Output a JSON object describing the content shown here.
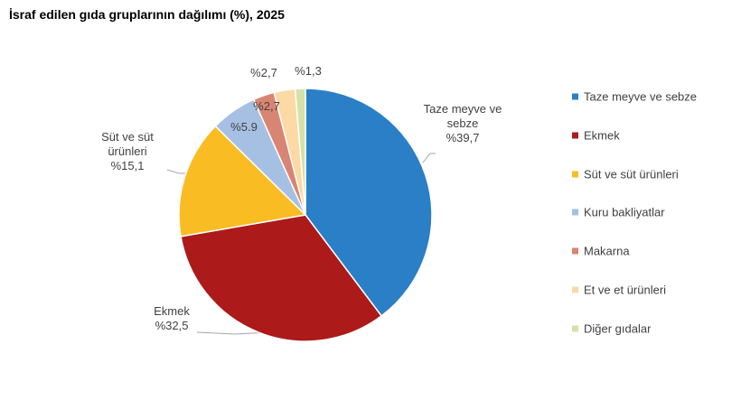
{
  "chart_data": {
    "type": "pie",
    "title": "İsraf edilen gıda gruplarının dağılımı (%), 2025",
    "categories": [
      "Taze meyve ve sebze",
      "Ekmek",
      "Süt ve süt ürünleri",
      "Kuru bakliyatlar",
      "Makarna",
      "Et ve et ürünleri",
      "Diğer gıdalar"
    ],
    "values": [
      39.7,
      32.5,
      15.1,
      5.9,
      2.7,
      2.7,
      1.3
    ],
    "value_labels": [
      "%39,7",
      "%32,5",
      "%15,1",
      "%5.9",
      "%2,7",
      "%2,7",
      "%1,3"
    ],
    "colors": [
      "#2a7fc6",
      "#ac1a1a",
      "#f9bc23",
      "#a6c0e3",
      "#d98573",
      "#fcd9a5",
      "#d5e1a6"
    ],
    "legend": "right"
  }
}
